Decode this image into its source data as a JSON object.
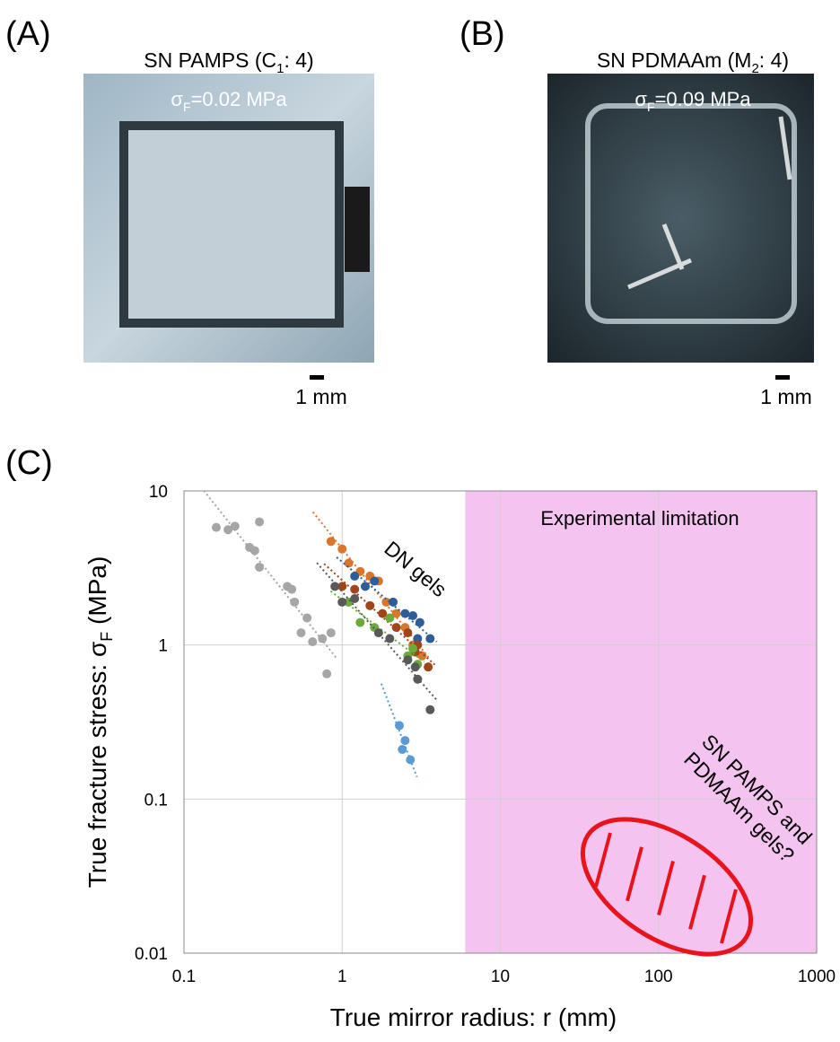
{
  "panel_a": {
    "label": "(A)",
    "title": [
      "SN PAMPS (C",
      "1",
      ": 4)"
    ],
    "stress": [
      "σ",
      "F",
      "=0.02 MPa"
    ],
    "scale": "1 mm"
  },
  "panel_b": {
    "label": "(B)",
    "title": [
      "SN PDMAAm (M",
      "2",
      ": 4)"
    ],
    "stress": [
      "σ",
      "F",
      "=0.09 MPa"
    ],
    "scale": "1 mm"
  },
  "panel_c": {
    "label": "(C)"
  },
  "chart_data": {
    "type": "scatter",
    "x_label": "True mirror radius: r (mm)",
    "y_label": [
      "True fracture stress: σ",
      "F",
      " (MPa)"
    ],
    "x_log": true,
    "y_log": true,
    "grid": true,
    "xlim": [
      0.1,
      1000
    ],
    "ylim": [
      0.01,
      10
    ],
    "xticks": [
      0.1,
      1,
      10,
      100,
      1000
    ],
    "yticks": [
      0.01,
      0.1,
      1,
      10
    ],
    "shaded_region": {
      "xlim": [
        6,
        1000
      ],
      "color": "#f5c3f0",
      "label": "Experimental  limitation"
    },
    "annotations": {
      "dn": "DN gels",
      "sn": [
        "SN PAMPS and",
        "PDMAAm gels?"
      ]
    },
    "trendlines": true,
    "series": [
      {
        "color": "#a6a6a6",
        "x": [
          0.16,
          0.19,
          0.21,
          0.3,
          0.28,
          0.3,
          0.26,
          0.45,
          0.48,
          0.5,
          0.6,
          0.75,
          0.85,
          0.65,
          0.8,
          0.55
        ],
        "values": [
          5.8,
          5.6,
          5.9,
          6.3,
          4.1,
          3.2,
          4.3,
          2.4,
          2.3,
          1.9,
          1.5,
          1.1,
          1.2,
          1.05,
          0.65,
          1.2
        ]
      },
      {
        "color": "#d9762b",
        "x": [
          0.85,
          1.0,
          1.1,
          1.3,
          1.5,
          1.7,
          1.9,
          2.2,
          2.5,
          2.8,
          3.2
        ],
        "values": [
          4.7,
          4.2,
          3.4,
          3.0,
          2.8,
          2.6,
          1.9,
          1.6,
          1.3,
          1.0,
          0.85
        ]
      },
      {
        "color": "#2e5d9c",
        "x": [
          1.2,
          1.4,
          1.6,
          2.1,
          2.5,
          2.8,
          3.1,
          3.6,
          3.0
        ],
        "values": [
          2.8,
          2.4,
          2.6,
          1.9,
          1.6,
          1.55,
          1.4,
          1.1,
          1.1
        ]
      },
      {
        "color": "#a0441a",
        "x": [
          1.0,
          1.2,
          1.5,
          1.8,
          2.2,
          2.6,
          3.0,
          3.5,
          2.9
        ],
        "values": [
          2.4,
          2.3,
          1.8,
          1.6,
          1.3,
          1.2,
          1.0,
          0.72,
          0.9
        ]
      },
      {
        "color": "#6aab3c",
        "x": [
          1.1,
          1.3,
          1.6,
          2.0,
          2.6,
          3.0,
          2.8
        ],
        "values": [
          1.9,
          1.4,
          1.3,
          1.5,
          0.85,
          0.75,
          0.95
        ]
      },
      {
        "color": "#595959",
        "x": [
          0.9,
          1.0,
          1.2,
          1.7,
          2.0,
          2.6,
          2.9,
          3.0,
          3.6
        ],
        "values": [
          2.4,
          1.9,
          2.0,
          1.2,
          1.1,
          0.8,
          0.72,
          0.6,
          0.38
        ]
      },
      {
        "color": "#5b9bd5",
        "x": [
          2.3,
          2.5,
          2.4,
          2.7
        ],
        "values": [
          0.3,
          0.24,
          0.21,
          0.18
        ]
      }
    ]
  }
}
